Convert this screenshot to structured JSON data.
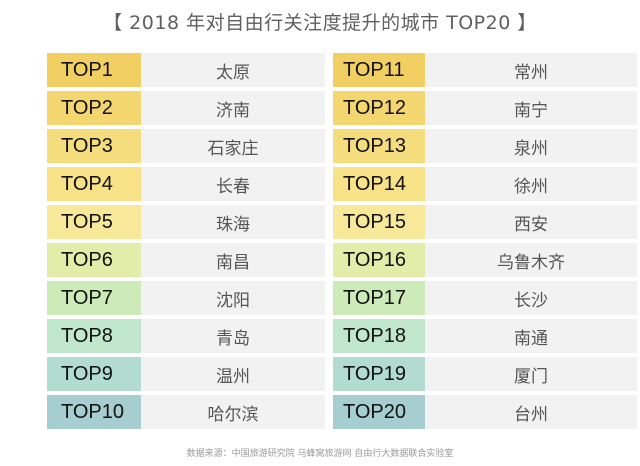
{
  "title": "【 2018 年对自由行关注度提升的城市 TOP20 】",
  "left": [
    {
      "rank": "TOP1",
      "city": "太原",
      "color": "#f1cf63"
    },
    {
      "rank": "TOP2",
      "city": "济南",
      "color": "#f3d66f"
    },
    {
      "rank": "TOP3",
      "city": "石家庄",
      "color": "#f5dc7c"
    },
    {
      "rank": "TOP4",
      "city": "长春",
      "color": "#f7e288"
    },
    {
      "rank": "TOP5",
      "city": "珠海",
      "color": "#f8e99a"
    },
    {
      "rank": "TOP6",
      "city": "南昌",
      "color": "#e1eda8"
    },
    {
      "rank": "TOP7",
      "city": "沈阳",
      "color": "#cdeab9"
    },
    {
      "rank": "TOP8",
      "city": "青岛",
      "color": "#c0e6cb"
    },
    {
      "rank": "TOP9",
      "city": "温州",
      "color": "#b2dcd2"
    },
    {
      "rank": "TOP10",
      "city": "哈尔滨",
      "color": "#a6cdcf"
    }
  ],
  "right": [
    {
      "rank": "TOP11",
      "city": "常州",
      "color": "#f1cf63"
    },
    {
      "rank": "TOP12",
      "city": "南宁",
      "color": "#f3d66f"
    },
    {
      "rank": "TOP13",
      "city": "泉州",
      "color": "#f5dc7c"
    },
    {
      "rank": "TOP14",
      "city": "徐州",
      "color": "#f7e288"
    },
    {
      "rank": "TOP15",
      "city": "西安",
      "color": "#f8e99a"
    },
    {
      "rank": "TOP16",
      "city": "乌鲁木齐",
      "color": "#e1eda8"
    },
    {
      "rank": "TOP17",
      "city": "长沙",
      "color": "#cdeab9"
    },
    {
      "rank": "TOP18",
      "city": "南通",
      "color": "#c0e6cb"
    },
    {
      "rank": "TOP19",
      "city": "厦门",
      "color": "#b2dcd2"
    },
    {
      "rank": "TOP20",
      "city": "台州",
      "color": "#a6cdcf"
    }
  ],
  "footer": "数据来源：中国旅游研究院 马蜂窝旅游网 自由行大数据联合实验室"
}
